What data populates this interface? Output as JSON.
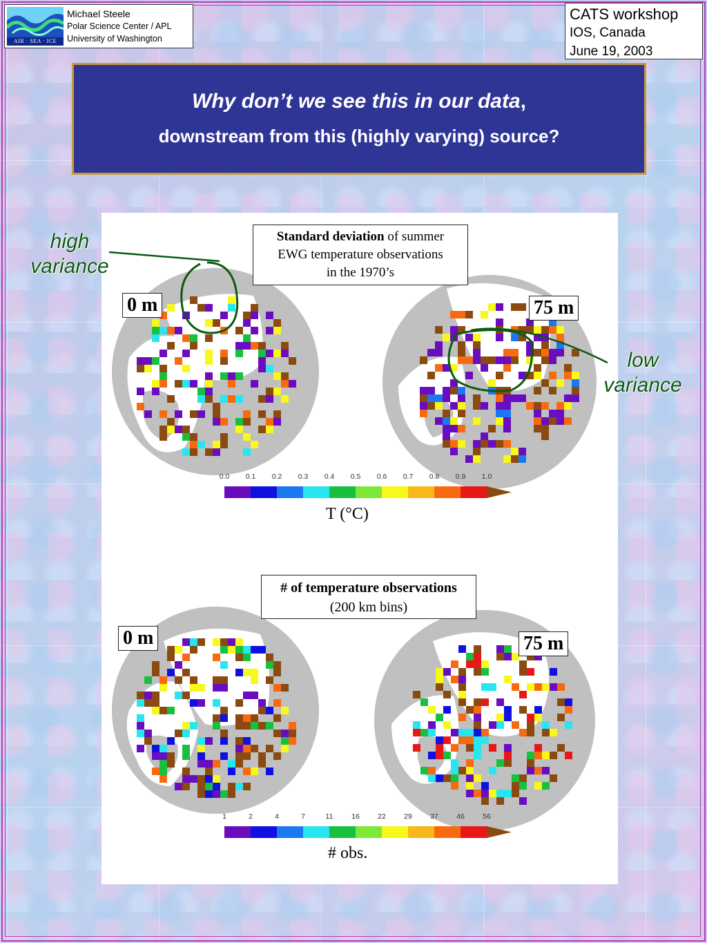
{
  "header": {
    "author": {
      "name": "Michael Steele",
      "affiliation": "Polar Science Center / APL",
      "university": "University of Washington",
      "logo_text": "AIR · SEA · ICE"
    },
    "workshop": {
      "title": "CATS workshop",
      "location": "IOS, Canada",
      "date": "June 19, 2003"
    }
  },
  "slide_title": {
    "line1_italic": "Why don’t we see this in our data",
    "line1_suffix": ",",
    "line2": "downstream from this (highly varying) source?"
  },
  "annotations": {
    "high_variance": [
      "high",
      "variance"
    ],
    "low_variance": [
      "low",
      "variance"
    ],
    "line_color": "#0a5a12"
  },
  "figure_top": {
    "title_bold": "Standard deviation",
    "title_rest": " of summer",
    "title_line2": "EWG temperature observations",
    "title_line3": "in the 1970’s",
    "depth_left": "0 m",
    "depth_right": "75 m",
    "colorbar_ticks": [
      "0.0",
      "0.1",
      "0.2",
      "0.3",
      "0.4",
      "0.5",
      "0.6",
      "0.7",
      "0.8",
      "0.9",
      "1.0"
    ],
    "unit": "T (°C)"
  },
  "figure_bottom": {
    "title_line1": "# of temperature observations",
    "title_line2": "(200 km bins)",
    "depth_left": "0 m",
    "depth_right": "75 m",
    "colorbar_ticks": [
      "1",
      "2",
      "4",
      "7",
      "11",
      "16",
      "22",
      "29",
      "37",
      "46",
      "56"
    ],
    "unit": "# obs."
  },
  "colors": {
    "scale": [
      "#6a0dbf",
      "#1010e0",
      "#1b78f0",
      "#28e6f0",
      "#19c040",
      "#7ee83a",
      "#f8f81a",
      "#f8b81a",
      "#f86a10",
      "#e81818",
      "#8b4a0f"
    ],
    "land": "#ffffff",
    "ocean_disk": "#c0c0c0",
    "title_bg": "#2f3594",
    "title_border": "#c89a3a",
    "frame": "#b23ab8"
  }
}
